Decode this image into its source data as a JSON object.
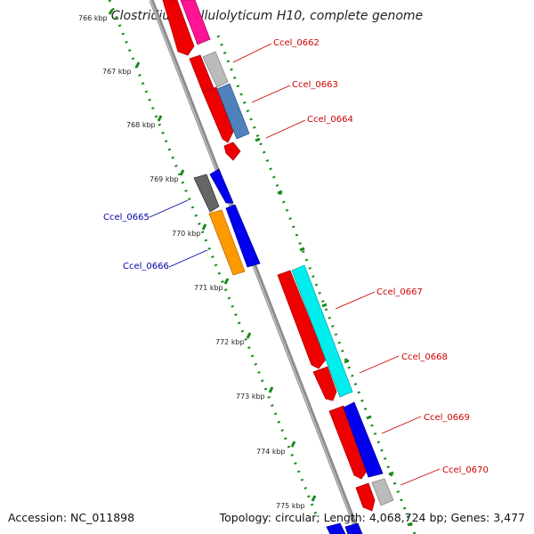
{
  "title": "Clostridium cellulolyticum H10, complete genome",
  "accession": "Accession: NC_011898",
  "summary": "Topology: circular; Length: 4,068,724 bp; Genes: 3,477",
  "colors": {
    "backbone": "#8c8c8c",
    "tick_dots": "#1a8a1a",
    "label_red": "#cc0000",
    "label_blue": "#0000aa"
  },
  "ticks": [
    "766 kbp",
    "767 kbp",
    "768 kbp",
    "769 kbp",
    "770 kbp",
    "771 kbp",
    "772 kbp",
    "773 kbp",
    "774 kbp",
    "775 kbp"
  ],
  "gene_labels": [
    "Ccel_0662",
    "Ccel_0663",
    "Ccel_0664",
    "Ccel_0665",
    "Ccel_0666",
    "Ccel_0667",
    "Ccel_0668",
    "Ccel_0669",
    "Ccel_0670"
  ]
}
